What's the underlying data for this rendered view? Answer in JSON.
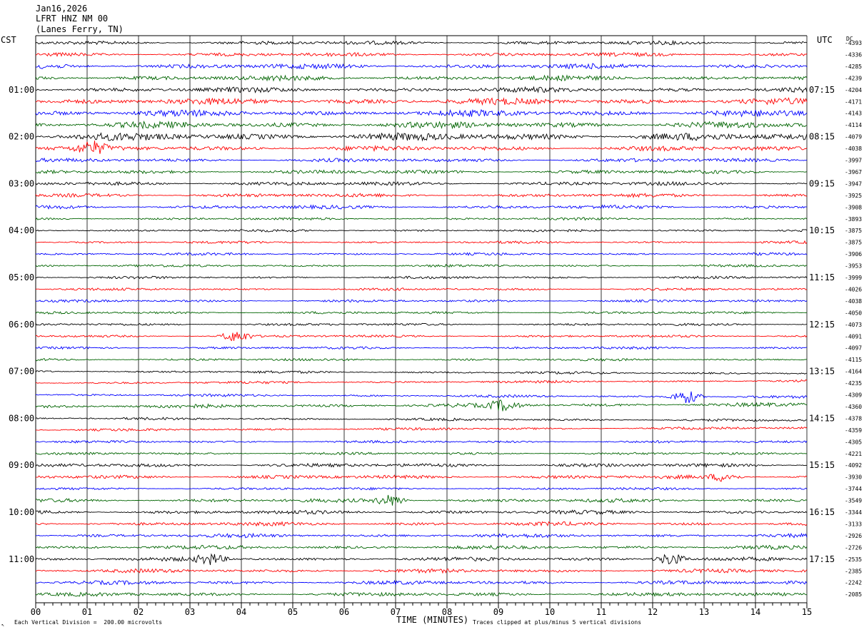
{
  "header": {
    "date": "Jan16,2026",
    "station": "LFRT HNZ NM 00",
    "location": "(Lanes Ferry, TN)"
  },
  "left_zone_label": "CST",
  "right_zone_label": "UTC",
  "dc_label": "DC",
  "footer": {
    "scale_note": "Each Vertical Division =  200.00 microvolts",
    "clip_note": "Traces clipped at plus/minus 5 vertical divisions"
  },
  "chart_data": {
    "type": "line",
    "xlabel": "TIME (MINUTES)",
    "xlim": [
      0,
      15
    ],
    "x_ticks": [
      "00",
      "01",
      "02",
      "03",
      "04",
      "05",
      "06",
      "07",
      "08",
      "09",
      "10",
      "11",
      "12",
      "13",
      "14",
      "15"
    ],
    "trace_colors": [
      "#000000",
      "#ff0000",
      "#0000ff",
      "#006400"
    ],
    "hour_labels_cst": [
      "01:00",
      "02:00",
      "03:00",
      "04:00",
      "05:00",
      "06:00",
      "07:00",
      "08:00",
      "09:00",
      "10:00",
      "11:00"
    ],
    "hour_labels_utc": [
      "07:15",
      "08:15",
      "09:15",
      "10:15",
      "11:15",
      "12:15",
      "13:15",
      "14:15",
      "15:15",
      "16:15",
      "17:15"
    ],
    "dc_offsets": [
      "-4393",
      "-4336",
      "-4285",
      "-4239",
      "-4204",
      "-4171",
      "-4143",
      "-4114",
      "-4079",
      "-4038",
      "-3997",
      "-3967",
      "-3947",
      "-3925",
      "-3908",
      "-3893",
      "-3875",
      "-3875",
      "-3906",
      "-3953",
      "-3999",
      "-4026",
      "-4038",
      "-4050",
      "-4073",
      "-4091",
      "-4097",
      "-4115",
      "-4164",
      "-4235",
      "-4309",
      "-4360",
      "-4378",
      "-4359",
      "-4305",
      "-4221",
      "-4092",
      "-3930",
      "-3744",
      "-3549",
      "-3344",
      "-3133",
      "-2926",
      "-2726",
      "-2535",
      "-2385",
      "-2242",
      "-2085"
    ],
    "amplitudes": [
      3,
      3,
      4,
      4,
      4,
      5,
      5,
      5,
      6,
      4,
      3,
      3,
      3,
      3,
      3,
      2,
      2,
      2,
      2,
      2,
      2,
      2,
      2,
      2,
      2,
      2,
      2,
      2,
      2,
      2,
      2,
      3,
      2,
      2,
      2,
      2,
      3,
      3,
      2,
      3,
      3,
      3,
      3,
      3,
      3,
      3,
      3,
      3
    ],
    "events": [
      {
        "trace": 9,
        "minute": 1.1,
        "amp": 8
      },
      {
        "trace": 25,
        "minute": 3.9,
        "amp": 8
      },
      {
        "trace": 30,
        "minute": 12.65,
        "amp": 10
      },
      {
        "trace": 31,
        "minute": 9.1,
        "amp": 7
      },
      {
        "trace": 37,
        "minute": 13.4,
        "amp": 6
      },
      {
        "trace": 39,
        "minute": 6.9,
        "amp": 8
      },
      {
        "trace": 44,
        "minute": 3.4,
        "amp": 7
      },
      {
        "trace": 44,
        "minute": 12.35,
        "amp": 9
      }
    ]
  }
}
